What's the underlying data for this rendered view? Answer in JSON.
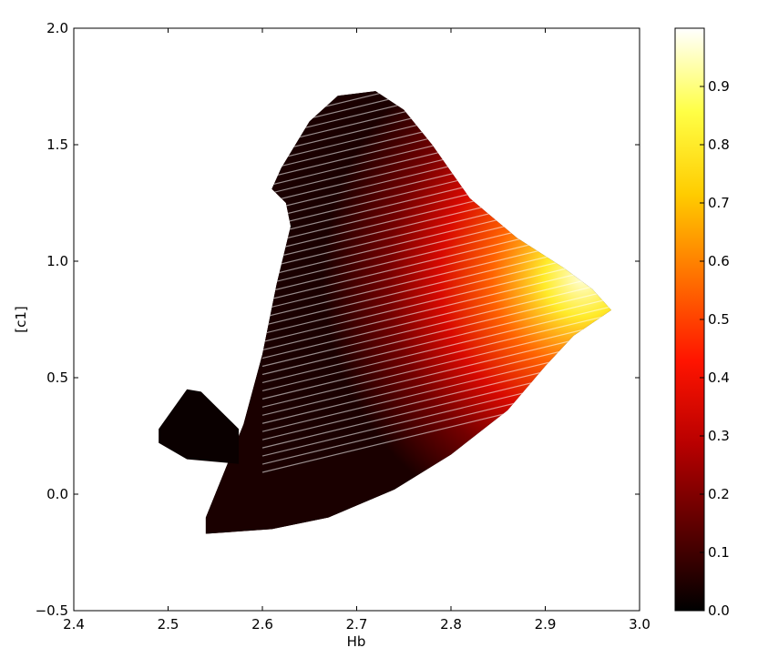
{
  "chart_data": {
    "type": "scatter",
    "xlabel": "Hb",
    "ylabel": "[c1]",
    "xlim": [
      2.4,
      3.0
    ],
    "ylim": [
      -0.5,
      2.0
    ],
    "x_ticks": [
      "2.4",
      "2.5",
      "2.6",
      "2.7",
      "2.8",
      "2.9",
      "3.0"
    ],
    "y_ticks": [
      "−0.5",
      "0.0",
      "0.5",
      "1.0",
      "1.5",
      "2.0"
    ],
    "grid": false,
    "colormap": "hot",
    "colorbar": {
      "range": [
        0.0,
        1.0
      ],
      "ticks": [
        "0.0",
        "0.1",
        "0.2",
        "0.3",
        "0.4",
        "0.5",
        "0.6",
        "0.7",
        "0.8",
        "0.9"
      ],
      "colors": [
        "#000000",
        "#5c0000",
        "#b80000",
        "#ff1400",
        "#ff7000",
        "#ffcc00",
        "#ffff46",
        "#ffffff"
      ]
    },
    "main_region_outline": [
      [
        2.54,
        -0.17
      ],
      [
        2.61,
        -0.15
      ],
      [
        2.67,
        -0.1
      ],
      [
        2.74,
        0.02
      ],
      [
        2.8,
        0.17
      ],
      [
        2.86,
        0.36
      ],
      [
        2.9,
        0.55
      ],
      [
        2.93,
        0.68
      ],
      [
        2.97,
        0.79
      ],
      [
        2.95,
        0.88
      ],
      [
        2.92,
        0.97
      ],
      [
        2.87,
        1.1
      ],
      [
        2.82,
        1.27
      ],
      [
        2.78,
        1.5
      ],
      [
        2.75,
        1.65
      ],
      [
        2.72,
        1.73
      ],
      [
        2.68,
        1.71
      ],
      [
        2.65,
        1.6
      ],
      [
        2.62,
        1.4
      ],
      [
        2.61,
        1.31
      ],
      [
        2.625,
        1.25
      ],
      [
        2.63,
        1.15
      ],
      [
        2.615,
        0.9
      ],
      [
        2.6,
        0.6
      ],
      [
        2.58,
        0.3
      ],
      [
        2.56,
        0.1
      ],
      [
        2.54,
        -0.1
      ]
    ],
    "branch_region_outline": [
      [
        2.49,
        0.28
      ],
      [
        2.52,
        0.45
      ],
      [
        2.535,
        0.44
      ],
      [
        2.56,
        0.34
      ],
      [
        2.575,
        0.28
      ],
      [
        2.575,
        0.13
      ],
      [
        2.52,
        0.15
      ],
      [
        2.49,
        0.22
      ]
    ],
    "peak": {
      "x": 2.94,
      "y": 0.93,
      "value": 0.97
    },
    "hot_band": {
      "center": [
        2.7,
        0.9
      ],
      "radius": 0.28,
      "max_value": 0.5
    },
    "stripes": {
      "x_min": 2.6,
      "x_max": 3.0,
      "y_min": 0.25,
      "y_max": 1.8,
      "spacing": 0.035
    }
  }
}
